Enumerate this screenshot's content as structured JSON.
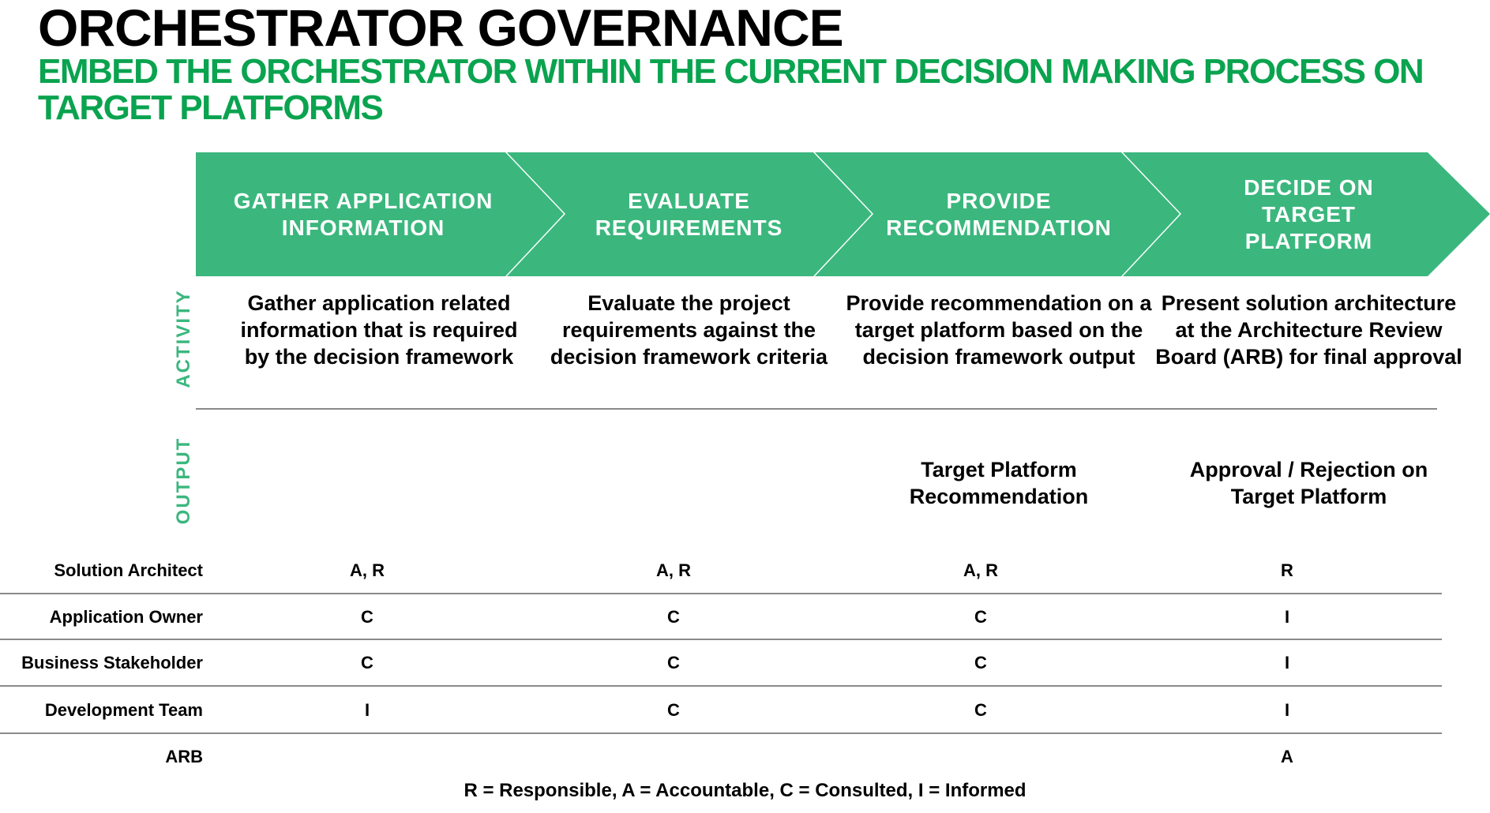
{
  "title": "ORCHESTRATOR GOVERNANCE",
  "subtitle": "EMBED THE ORCHESTRATOR WITHIN THE CURRENT DECISION MAKING PROCESS ON TARGET PLATFORMS",
  "colors": {
    "chevron_fill": "#3bb77e",
    "subtitle_green": "#0aa34f",
    "side_label_green": "#3bb77e"
  },
  "side_labels": {
    "activity": "ACTIVITY",
    "output": "OUTPUT"
  },
  "steps": [
    {
      "title": "GATHER APPLICATION INFORMATION",
      "activity": "Gather application related information that is required by the decision framework",
      "output": ""
    },
    {
      "title": "EVALUATE REQUIREMENTS",
      "activity": "Evaluate the project requirements against the decision framework criteria",
      "output": ""
    },
    {
      "title": "PROVIDE RECOMMENDATION",
      "activity": "Provide recommendation on a target platform based on the decision framework output",
      "output": "Target Platform Recommendation"
    },
    {
      "title": "DECIDE ON TARGET PLATFORM",
      "activity": "Present solution architecture at the Architecture Review Board (ARB) for final approval",
      "output": "Approval / Rejection on Target Platform"
    }
  ],
  "raci": [
    {
      "role": "Solution Architect",
      "values": [
        "A, R",
        "A, R",
        "A, R",
        "R"
      ]
    },
    {
      "role": "Application Owner",
      "values": [
        "C",
        "C",
        "C",
        "I"
      ]
    },
    {
      "role": "Business Stakeholder",
      "values": [
        "C",
        "C",
        "C",
        "I"
      ]
    },
    {
      "role": "Development Team",
      "values": [
        "I",
        "C",
        "C",
        "I"
      ]
    },
    {
      "role": "ARB",
      "values": [
        "",
        "",
        "",
        "A"
      ]
    }
  ],
  "legend": "R = Responsible, A = Accountable, C = Consulted, I = Informed"
}
